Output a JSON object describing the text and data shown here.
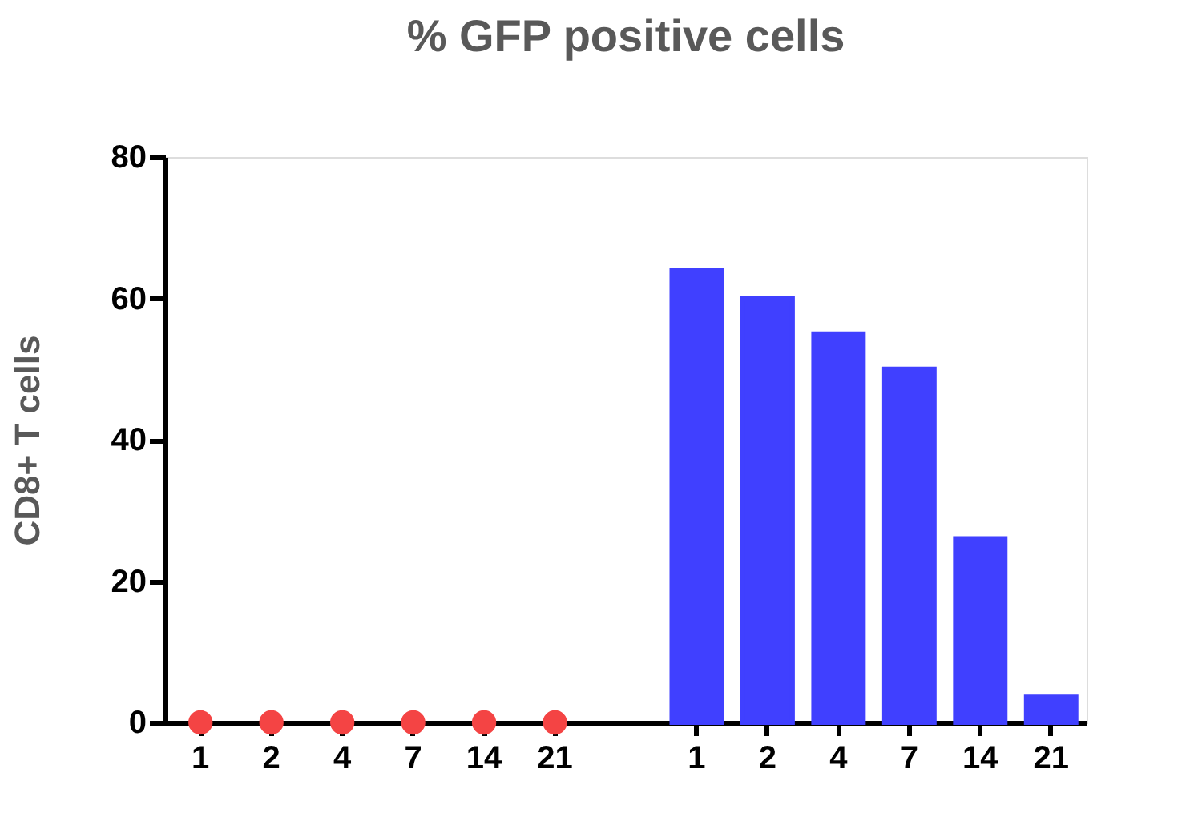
{
  "chart_data": {
    "type": "bar",
    "title": "% GFP positive cells",
    "ylabel": "CD8+ T cells",
    "categories": [
      "1",
      "2",
      "4",
      "7",
      "14",
      "21",
      null,
      "1",
      "2",
      "4",
      "7",
      "14",
      "21"
    ],
    "series": [
      {
        "type": "scatter",
        "color": "#f44444",
        "values": [
          0,
          0,
          0,
          0,
          0,
          0,
          null,
          null,
          null,
          null,
          null,
          null,
          null
        ]
      },
      {
        "color": "#4040ff",
        "values": [
          null,
          null,
          null,
          null,
          null,
          null,
          null,
          64,
          60,
          55,
          50,
          26,
          3.6
        ]
      }
    ],
    "ylim": [
      0,
      80
    ],
    "yticks": [
      0,
      20,
      40,
      60,
      80
    ],
    "grid": false,
    "marker": "circle"
  }
}
